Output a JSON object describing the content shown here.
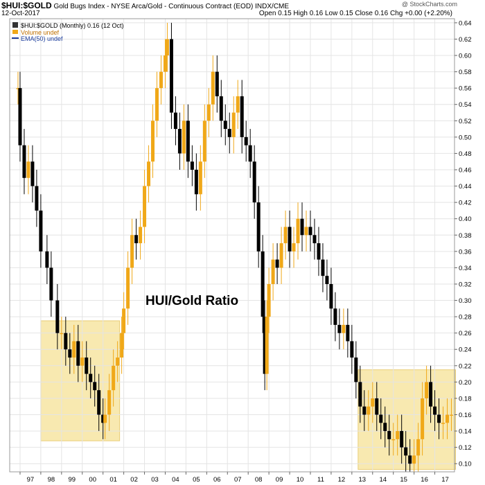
{
  "header": {
    "symbol": "$HUI:$GOLD",
    "description": "Gold Bugs Index - NYSE Arca/Gold - Continuous Contract (EOD) INDX/CME",
    "date": "12-Oct-2017",
    "ohlc": "Open 0.15 High 0.16 Low 0.15 Close 0.16 Chg +0.00 (+2.20%)",
    "copyright": "@ StockCharts.com"
  },
  "legend": {
    "main": "$HUI:$GOLD (Monthly) 0.16 (12 Oct)",
    "volume": "Volume undef",
    "ema": "EMA(50) undef"
  },
  "annotation": "HUI/Gold Ratio",
  "colors": {
    "up": "#f0a818",
    "down": "#000000",
    "highlight": "#f7e6a3",
    "highlight_border": "#e6c560",
    "ema": "#1c3d9c"
  },
  "chart_data": {
    "type": "line",
    "title": "",
    "xlabel": "",
    "ylabel": "",
    "ylim": [
      0.09,
      0.645
    ],
    "yticks": [
      "0.10",
      "0.12",
      "0.14",
      "0.16",
      "0.18",
      "0.20",
      "0.22",
      "0.24",
      "0.26",
      "0.28",
      "0.30",
      "0.32",
      "0.34",
      "0.36",
      "0.38",
      "0.40",
      "0.42",
      "0.44",
      "0.46",
      "0.48",
      "0.50",
      "0.52",
      "0.54",
      "0.56",
      "0.58",
      "0.60",
      "0.62",
      "0.64"
    ],
    "xticks": [
      "97",
      "98",
      "99",
      "00",
      "01",
      "02",
      "03",
      "04",
      "05",
      "06",
      "07",
      "08",
      "09",
      "10",
      "11",
      "12",
      "13",
      "14",
      "15",
      "16",
      "17"
    ],
    "grid": true,
    "series": [
      {
        "x": [
          1996.9,
          1997.0,
          1997.2,
          1997.4,
          1997.6,
          1997.8,
          1998.0,
          1998.3,
          1998.5,
          1998.8,
          1999.0,
          1999.2,
          1999.4,
          1999.6,
          1999.8,
          2000.0,
          2000.2,
          2000.4,
          2000.6,
          2000.8,
          2001.0,
          2001.1,
          2001.3,
          2001.5,
          2001.7,
          2001.9,
          2002.0,
          2002.2,
          2002.4,
          2002.6,
          2002.8,
          2003.0,
          2003.2,
          2003.4,
          2003.6,
          2003.8,
          2004.0,
          2004.1,
          2004.3,
          2004.5,
          2004.7,
          2004.9,
          2005.1,
          2005.3,
          2005.5,
          2005.7,
          2005.9,
          2006.1,
          2006.3,
          2006.5,
          2006.7,
          2006.9,
          2007.1,
          2007.3,
          2007.5,
          2007.7,
          2007.9,
          2008.1,
          2008.3,
          2008.5,
          2008.7,
          2008.8,
          2008.9,
          2009.0,
          2009.2,
          2009.4,
          2009.6,
          2009.8,
          2010.0,
          2010.2,
          2010.4,
          2010.6,
          2010.8,
          2011.0,
          2011.2,
          2011.4,
          2011.6,
          2011.8,
          2012.0,
          2012.2,
          2012.4,
          2012.6,
          2012.8,
          2013.0,
          2013.2,
          2013.4,
          2013.6,
          2013.8,
          2014.0,
          2014.2,
          2014.4,
          2014.6,
          2014.8,
          2015.0,
          2015.2,
          2015.4,
          2015.6,
          2015.8,
          2016.0,
          2016.2,
          2016.4,
          2016.6,
          2016.8,
          2017.0,
          2017.2,
          2017.4,
          2017.6,
          2017.8
        ],
        "values": [
          0.56,
          0.49,
          0.45,
          0.47,
          0.44,
          0.41,
          0.36,
          0.34,
          0.3,
          0.26,
          0.26,
          0.24,
          0.23,
          0.25,
          0.22,
          0.23,
          0.21,
          0.2,
          0.19,
          0.16,
          0.15,
          0.16,
          0.19,
          0.22,
          0.23,
          0.26,
          0.29,
          0.34,
          0.38,
          0.37,
          0.39,
          0.44,
          0.47,
          0.52,
          0.56,
          0.58,
          0.6,
          0.62,
          0.53,
          0.51,
          0.48,
          0.52,
          0.47,
          0.46,
          0.43,
          0.47,
          0.52,
          0.54,
          0.58,
          0.55,
          0.52,
          0.51,
          0.5,
          0.53,
          0.55,
          0.5,
          0.49,
          0.47,
          0.42,
          0.36,
          0.28,
          0.21,
          0.28,
          0.32,
          0.35,
          0.34,
          0.37,
          0.39,
          0.36,
          0.37,
          0.4,
          0.38,
          0.39,
          0.38,
          0.37,
          0.35,
          0.33,
          0.32,
          0.29,
          0.27,
          0.26,
          0.27,
          0.25,
          0.23,
          0.2,
          0.17,
          0.16,
          0.17,
          0.18,
          0.16,
          0.15,
          0.14,
          0.13,
          0.13,
          0.14,
          0.12,
          0.11,
          0.1,
          0.11,
          0.13,
          0.18,
          0.2,
          0.17,
          0.16,
          0.15,
          0.15,
          0.16,
          0.16
        ]
      }
    ],
    "highlight_regions": [
      {
        "x0": 1998.0,
        "x1": 2001.8,
        "y0": 0.128,
        "y1": 0.275
      },
      {
        "x0": 2013.3,
        "x1": 2018.0,
        "y0": 0.093,
        "y1": 0.215
      }
    ]
  }
}
